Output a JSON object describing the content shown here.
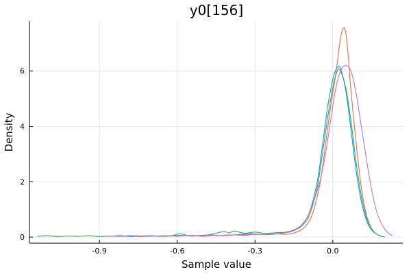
{
  "chart_data": {
    "type": "line",
    "title": "y0[156]",
    "xlabel": "Sample value",
    "ylabel": "Density",
    "xlim": [
      -1.17,
      0.27
    ],
    "ylim": [
      -0.22,
      7.8
    ],
    "xticks": [
      -0.9,
      -0.6,
      -0.3,
      0.0
    ],
    "xtick_labels": [
      "-0.9",
      "-0.6",
      "-0.3",
      "0.0"
    ],
    "yticks": [
      0,
      2,
      4,
      6
    ],
    "ytick_labels": [
      "0",
      "2",
      "4",
      "6"
    ],
    "grid": true,
    "legend": "none",
    "series": [
      {
        "color": "#009af9",
        "x": [
          -0.86,
          -0.82,
          -0.78,
          -0.74,
          -0.7,
          -0.66,
          -0.62,
          -0.59,
          -0.55,
          -0.51,
          -0.47,
          -0.43,
          -0.39,
          -0.35,
          -0.31,
          -0.27,
          -0.23,
          -0.19,
          -0.15,
          -0.12,
          -0.09,
          -0.06,
          -0.04,
          -0.02,
          0.0,
          0.01,
          0.02,
          0.03,
          0.05,
          0.07,
          0.09,
          0.11,
          0.13,
          0.15,
          0.18,
          0.2
        ],
        "y": [
          0.03,
          0.05,
          0.02,
          0.04,
          0.05,
          0.03,
          0.05,
          0.12,
          0.04,
          0.06,
          0.08,
          0.05,
          0.07,
          0.1,
          0.12,
          0.09,
          0.1,
          0.16,
          0.26,
          0.45,
          0.9,
          2.0,
          3.3,
          4.7,
          5.7,
          6.0,
          6.15,
          6.1,
          5.3,
          3.9,
          2.4,
          1.3,
          0.6,
          0.25,
          0.05,
          0.01
        ]
      },
      {
        "color": "#e26f46",
        "x": [
          -0.86,
          -0.82,
          -0.78,
          -0.74,
          -0.7,
          -0.66,
          -0.62,
          -0.58,
          -0.54,
          -0.5,
          -0.46,
          -0.42,
          -0.38,
          -0.34,
          -0.3,
          -0.26,
          -0.22,
          -0.18,
          -0.14,
          -0.11,
          -0.08,
          -0.05,
          -0.03,
          -0.01,
          0.01,
          0.02,
          0.03,
          0.04,
          0.05,
          0.06,
          0.07,
          0.09,
          0.11,
          0.13,
          0.15,
          0.17,
          0.19
        ],
        "y": [
          0.04,
          0.03,
          0.04,
          0.02,
          0.04,
          0.03,
          0.04,
          0.05,
          0.06,
          0.03,
          0.06,
          0.05,
          0.08,
          0.06,
          0.1,
          0.09,
          0.12,
          0.1,
          0.18,
          0.35,
          0.8,
          1.9,
          3.2,
          4.6,
          5.8,
          6.5,
          7.2,
          7.55,
          7.4,
          6.5,
          5.3,
          3.4,
          1.8,
          0.8,
          0.3,
          0.1,
          0.02
        ]
      },
      {
        "color": "#3da44d",
        "x": [
          -1.14,
          -1.1,
          -1.06,
          -1.02,
          -0.98,
          -0.94,
          -0.9,
          -0.86,
          -0.82,
          -0.78,
          -0.74,
          -0.7,
          -0.66,
          -0.62,
          -0.58,
          -0.54,
          -0.5,
          -0.46,
          -0.42,
          -0.4,
          -0.38,
          -0.34,
          -0.3,
          -0.26,
          -0.22,
          -0.18,
          -0.15,
          -0.12,
          -0.09,
          -0.06,
          -0.04,
          -0.02,
          0.0,
          0.01,
          0.02,
          0.03,
          0.05,
          0.07,
          0.09,
          0.11,
          0.13,
          0.15,
          0.17,
          0.19
        ],
        "y": [
          0.03,
          0.05,
          0.02,
          0.04,
          0.03,
          0.05,
          0.02,
          0.04,
          0.03,
          0.05,
          0.03,
          0.04,
          0.03,
          0.05,
          0.06,
          0.04,
          0.05,
          0.12,
          0.2,
          0.15,
          0.22,
          0.14,
          0.18,
          0.13,
          0.16,
          0.17,
          0.24,
          0.4,
          0.8,
          1.8,
          3.0,
          4.3,
          5.4,
          5.8,
          6.05,
          6.0,
          5.4,
          4.2,
          2.7,
          1.5,
          0.7,
          0.3,
          0.1,
          0.02
        ]
      },
      {
        "color": "#c271d2",
        "x": [
          -0.88,
          -0.84,
          -0.8,
          -0.76,
          -0.72,
          -0.68,
          -0.64,
          -0.6,
          -0.56,
          -0.52,
          -0.48,
          -0.44,
          -0.4,
          -0.36,
          -0.32,
          -0.28,
          -0.24,
          -0.2,
          -0.16,
          -0.13,
          -0.1,
          -0.07,
          -0.05,
          -0.03,
          -0.01,
          0.01,
          0.03,
          0.05,
          0.07,
          0.09,
          0.11,
          0.13,
          0.15,
          0.17,
          0.19,
          0.21,
          0.23
        ],
        "y": [
          0.03,
          0.04,
          0.03,
          0.05,
          0.03,
          0.04,
          0.05,
          0.03,
          0.06,
          0.04,
          0.07,
          0.05,
          0.08,
          0.07,
          0.1,
          0.09,
          0.11,
          0.13,
          0.2,
          0.35,
          0.7,
          1.4,
          2.0,
          2.9,
          4.1,
          5.3,
          6.0,
          6.2,
          6.0,
          5.2,
          4.0,
          2.8,
          1.7,
          0.9,
          0.45,
          0.18,
          0.05
        ]
      }
    ]
  }
}
